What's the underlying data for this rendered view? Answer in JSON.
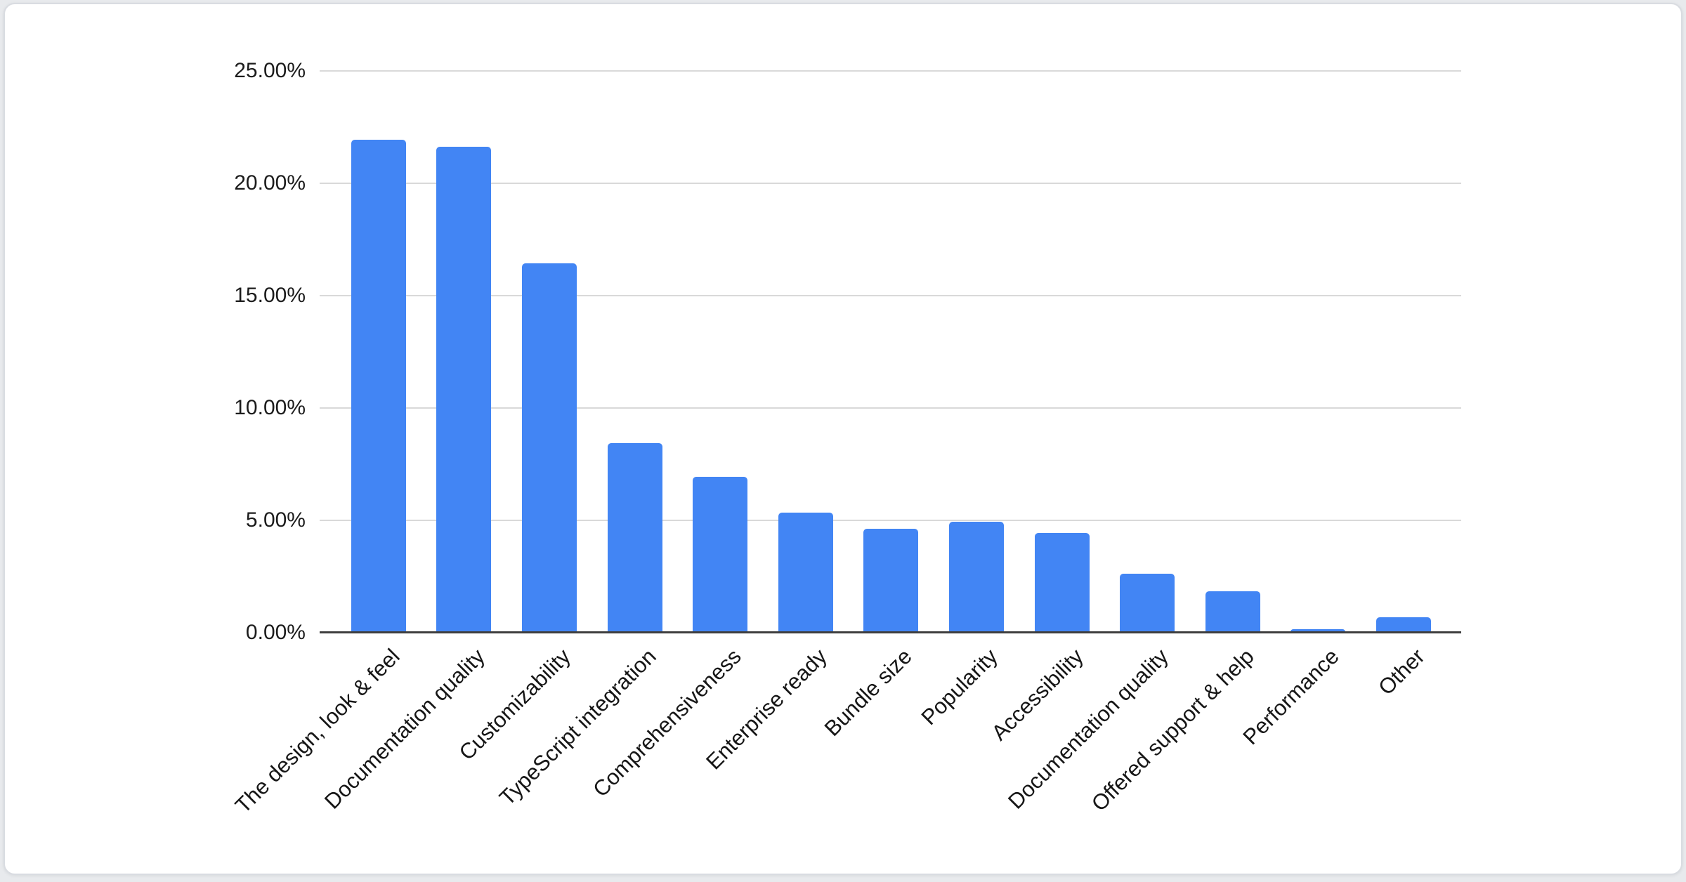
{
  "page": {
    "background_color": "#e8eaed",
    "card_background_color": "#ffffff",
    "card_border_color": "#d9dce1"
  },
  "chart_data": {
    "type": "bar",
    "title": "",
    "xlabel": "",
    "ylabel": "",
    "categories": [
      "The design, look & feel",
      "Documentation quality",
      "Customizability",
      "TypeScript integration",
      "Comprehensiveness",
      "Enterprise ready",
      "Bundle size",
      "Popularity",
      "Accessibility",
      "Documentation quality",
      "Offered support & help",
      "Performance",
      "Other"
    ],
    "values": [
      21.9,
      21.6,
      16.4,
      8.4,
      6.9,
      5.3,
      4.6,
      4.9,
      4.4,
      2.6,
      1.8,
      0.12,
      0.66
    ],
    "value_unit": "%",
    "ylim": [
      0,
      25
    ],
    "y_ticks": [
      {
        "label": "0.00%",
        "value": 0
      },
      {
        "label": "5.00%",
        "value": 5
      },
      {
        "label": "10.00%",
        "value": 10
      },
      {
        "label": "15.00%",
        "value": 15
      },
      {
        "label": "20.00%",
        "value": 20
      },
      {
        "label": "25.00%",
        "value": 25
      }
    ],
    "grid": true,
    "legend": "none",
    "bar_color": "#4285f4",
    "gridline_color": "#d9d9d9",
    "axis_line_color": "#3e3e3e",
    "tick_label_color": "#1c1c1c",
    "category_label_color": "#161616",
    "category_label_rotation_deg": -45
  }
}
